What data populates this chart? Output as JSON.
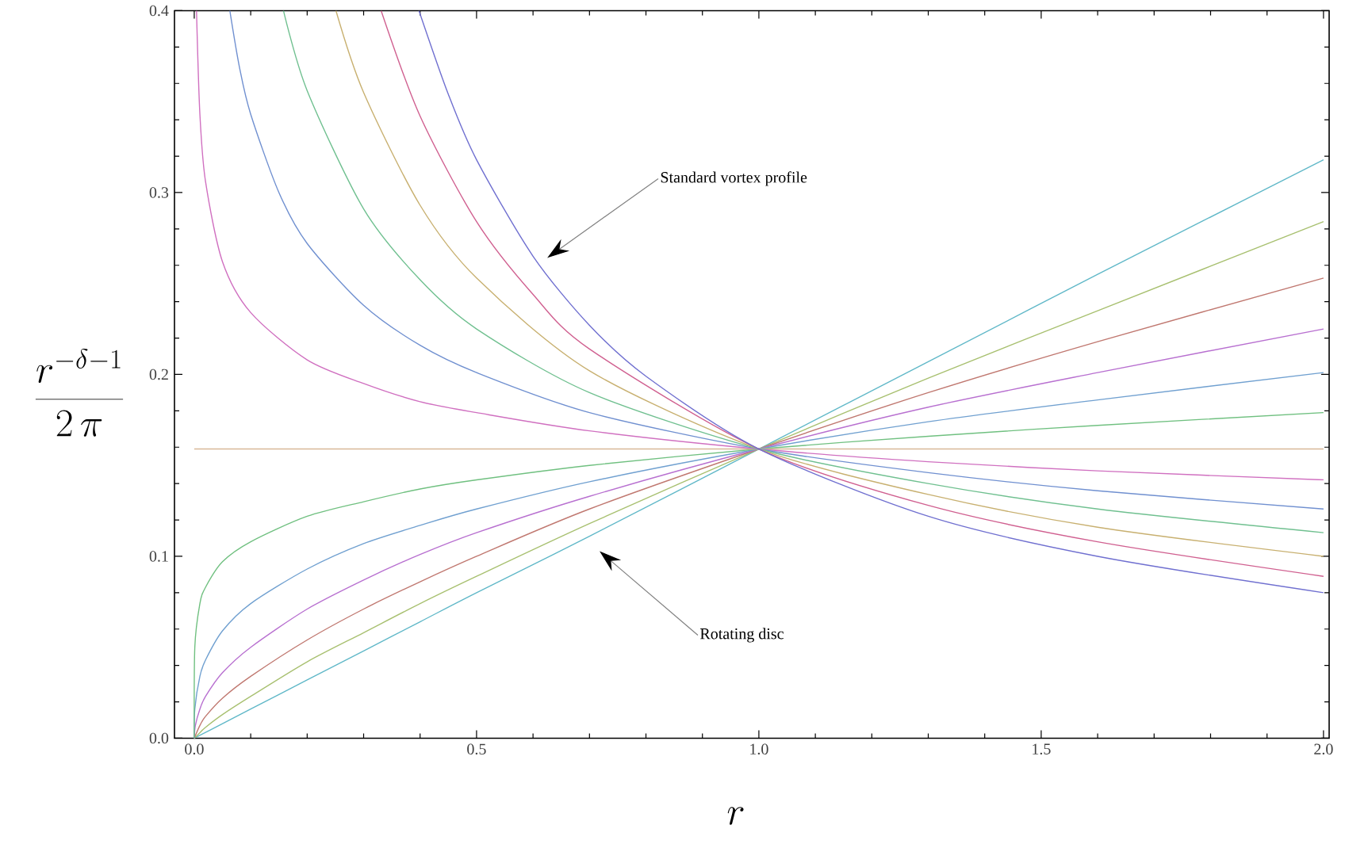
{
  "chart_data": {
    "type": "line",
    "xlabel": "r",
    "ylabel": "\\frac{r^{-\\delta-1}}{2\\,\\pi}",
    "xlim": [
      -0.035,
      2.01
    ],
    "ylim": [
      0,
      0.4
    ],
    "xticks": [
      {
        "value": 0,
        "label": "0.0"
      },
      {
        "value": 0.5,
        "label": "0.5"
      },
      {
        "value": 1,
        "label": "1.0"
      },
      {
        "value": 1.5,
        "label": "1.5"
      },
      {
        "value": 2,
        "label": "2.0"
      }
    ],
    "yticks": [
      {
        "value": 0,
        "label": "0.0"
      },
      {
        "value": 0.1,
        "label": "0.1"
      },
      {
        "value": 0.2,
        "label": "0.2"
      },
      {
        "value": 0.3,
        "label": "0.3"
      },
      {
        "value": 0.4,
        "label": "0.4"
      }
    ],
    "annotations": [
      "Standard vortex profile",
      "Rotating disc"
    ],
    "series": [
      {
        "color": "#60b8c8",
        "x": [
          0,
          0.05,
          0.1,
          0.2,
          0.3,
          0.4,
          0.5,
          0.7,
          1,
          1.3,
          1.6,
          2
        ],
        "values": [
          0,
          0.008,
          0.016,
          0.032,
          0.048,
          0.064,
          0.08,
          0.111,
          0.159,
          0.207,
          0.255,
          0.318
        ]
      },
      {
        "color": "#a8c070",
        "x": [
          0,
          0.01,
          0.02,
          0.05,
          0.1,
          0.2,
          0.3,
          0.4,
          0.5,
          0.7,
          1,
          1.3,
          1.6,
          2
        ],
        "values": [
          0,
          0.003,
          0.006,
          0.013,
          0.023,
          0.042,
          0.058,
          0.074,
          0.089,
          0.118,
          0.159,
          0.198,
          0.235,
          0.284
        ]
      },
      {
        "color": "#c07870",
        "x": [
          0,
          0.01,
          0.02,
          0.05,
          0.1,
          0.2,
          0.3,
          0.4,
          0.5,
          0.7,
          1,
          1.3,
          1.6,
          2
        ],
        "values": [
          0,
          0.007,
          0.012,
          0.022,
          0.034,
          0.054,
          0.071,
          0.086,
          0.1,
          0.126,
          0.159,
          0.19,
          0.218,
          0.253
        ]
      },
      {
        "color": "#b870d0",
        "x": [
          0,
          0.002,
          0.01,
          0.02,
          0.05,
          0.1,
          0.2,
          0.3,
          0.4,
          0.5,
          0.7,
          1,
          1.3,
          1.6,
          2
        ],
        "values": [
          0,
          0.007,
          0.016,
          0.023,
          0.036,
          0.05,
          0.071,
          0.087,
          0.101,
          0.113,
          0.133,
          0.159,
          0.182,
          0.201,
          0.225
        ]
      },
      {
        "color": "#70a0d0",
        "x": [
          0,
          0.001,
          0.01,
          0.02,
          0.05,
          0.1,
          0.2,
          0.3,
          0.4,
          0.5,
          0.7,
          1,
          1.3,
          1.6,
          2
        ],
        "values": [
          0,
          0.016,
          0.034,
          0.043,
          0.059,
          0.074,
          0.093,
          0.107,
          0.117,
          0.126,
          0.141,
          0.159,
          0.174,
          0.186,
          0.201
        ]
      },
      {
        "color": "#70c080",
        "x": [
          0,
          0.001,
          0.01,
          0.02,
          0.05,
          0.1,
          0.2,
          0.3,
          0.4,
          0.5,
          0.7,
          1,
          1.3,
          1.6,
          2
        ],
        "values": [
          0,
          0.05,
          0.074,
          0.083,
          0.097,
          0.108,
          0.122,
          0.13,
          0.137,
          0.142,
          0.15,
          0.159,
          0.166,
          0.172,
          0.179
        ]
      },
      {
        "color": "#d8b898",
        "x": [
          0,
          2
        ],
        "values": [
          0.159,
          0.159
        ]
      },
      {
        "color": "#d070c0",
        "x": [
          0.004,
          0.01,
          0.02,
          0.05,
          0.1,
          0.2,
          0.3,
          0.4,
          0.5,
          0.7,
          1,
          1.3,
          1.6,
          2
        ],
        "values": [
          0.4,
          0.343,
          0.306,
          0.262,
          0.234,
          0.208,
          0.195,
          0.185,
          0.179,
          0.169,
          0.159,
          0.152,
          0.147,
          0.142
        ]
      },
      {
        "color": "#7090d0",
        "x": [
          0.063,
          0.08,
          0.1,
          0.15,
          0.2,
          0.3,
          0.4,
          0.5,
          0.7,
          1,
          1.3,
          1.6,
          2
        ],
        "values": [
          0.4,
          0.369,
          0.343,
          0.3,
          0.272,
          0.238,
          0.216,
          0.201,
          0.179,
          0.159,
          0.146,
          0.136,
          0.126
        ]
      },
      {
        "color": "#70c090",
        "x": [
          0.158,
          0.2,
          0.3,
          0.4,
          0.5,
          0.7,
          1,
          1.3,
          1.6,
          2
        ],
        "values": [
          0.4,
          0.356,
          0.291,
          0.252,
          0.225,
          0.19,
          0.159,
          0.14,
          0.126,
          0.113
        ]
      },
      {
        "color": "#c8b070",
        "x": [
          0.251,
          0.3,
          0.4,
          0.5,
          0.7,
          1,
          1.3,
          1.6,
          2
        ],
        "values": [
          0.4,
          0.355,
          0.293,
          0.253,
          0.202,
          0.159,
          0.134,
          0.116,
          0.1
        ]
      },
      {
        "color": "#d06090",
        "x": [
          0.331,
          0.4,
          0.5,
          0.6,
          0.7,
          1,
          1.3,
          1.6,
          2
        ],
        "values": [
          0.4,
          0.342,
          0.284,
          0.244,
          0.214,
          0.159,
          0.128,
          0.108,
          0.089
        ]
      },
      {
        "color": "#7070d0",
        "x": [
          0.398,
          0.45,
          0.5,
          0.6,
          0.7,
          0.8,
          1,
          1.3,
          1.6,
          2
        ],
        "values": [
          0.4,
          0.354,
          0.318,
          0.265,
          0.227,
          0.199,
          0.159,
          0.122,
          0.1,
          0.08
        ]
      }
    ]
  }
}
